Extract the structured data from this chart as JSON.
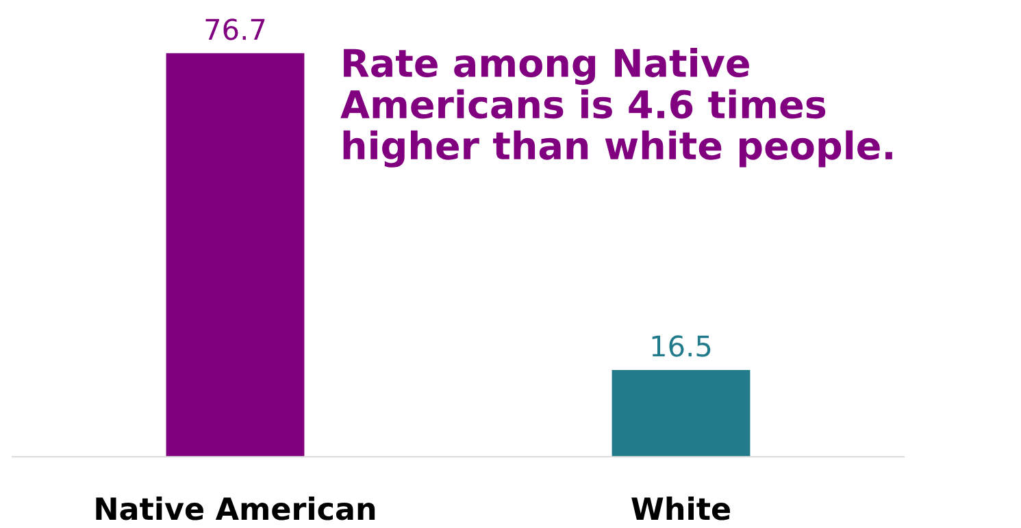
{
  "chart_data": {
    "type": "bar",
    "categories": [
      "Native American",
      "White"
    ],
    "values": [
      76.7,
      16.5
    ],
    "colors": [
      "#800080",
      "#217b8a"
    ],
    "data_labels": true,
    "grid": false,
    "annotations": [
      "Rate among Native\nAmericans is 4.6 times\nhigher than white people."
    ]
  }
}
